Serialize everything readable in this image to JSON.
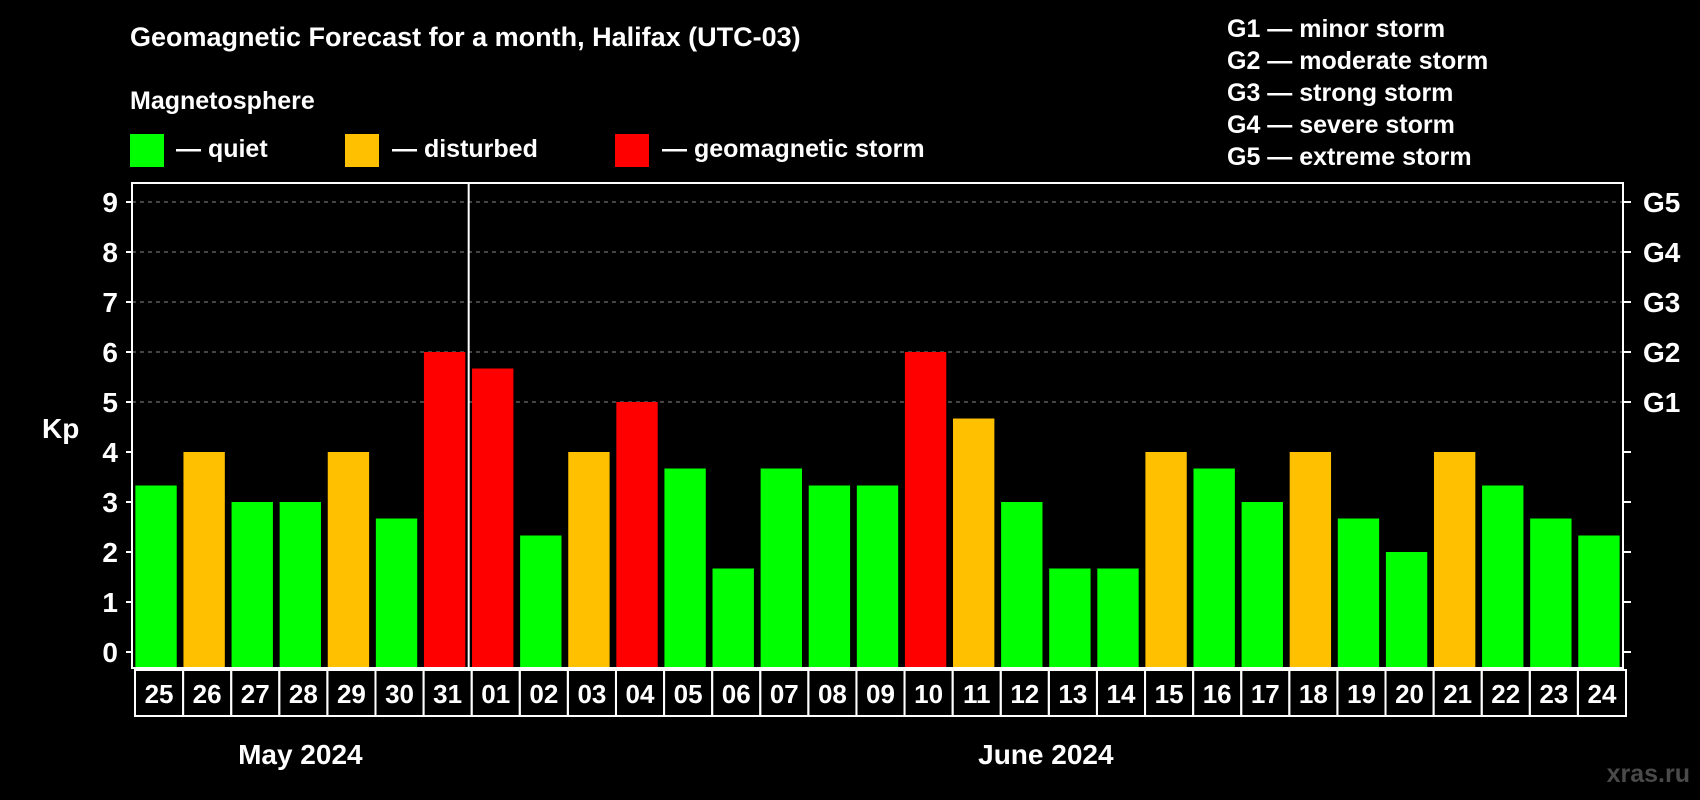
{
  "header": {
    "title": "Geomagnetic Forecast for a month, Halifax (UTC-03)",
    "legend_heading": "Magnetosphere",
    "legend": [
      {
        "label": "— quiet",
        "color": "#00ff00"
      },
      {
        "label": "— disturbed",
        "color": "#ffc000"
      },
      {
        "label": "— geomagnetic storm",
        "color": "#ff0000"
      }
    ],
    "storm_scale": [
      "G1 — minor storm",
      "G2 — moderate storm",
      "G3 — strong storm",
      "G4 — severe storm",
      "G5 — extreme storm"
    ]
  },
  "watermark": "xras.ru",
  "chart_data": {
    "type": "bar",
    "title": "Geomagnetic Forecast for a month, Halifax (UTC-03)",
    "ylabel": "Kp",
    "ylim": [
      0,
      9
    ],
    "yticks": [
      "0",
      "1",
      "2",
      "3",
      "4",
      "5",
      "6",
      "7",
      "8",
      "9"
    ],
    "right_axis_labels": [
      {
        "kp": 5,
        "label": "G1"
      },
      {
        "kp": 6,
        "label": "G2"
      },
      {
        "kp": 7,
        "label": "G3"
      },
      {
        "kp": 8,
        "label": "G4"
      },
      {
        "kp": 9,
        "label": "G5"
      }
    ],
    "grid": "horizontal dashed above Kp 5",
    "months": [
      {
        "label": "May 2024",
        "first_day": "25",
        "last_day": "31"
      },
      {
        "label": "June 2024",
        "first_day": "01",
        "last_day": "24"
      }
    ],
    "categories": [
      "25",
      "26",
      "27",
      "28",
      "29",
      "30",
      "31",
      "01",
      "02",
      "03",
      "04",
      "05",
      "06",
      "07",
      "08",
      "09",
      "10",
      "11",
      "12",
      "13",
      "14",
      "15",
      "16",
      "17",
      "18",
      "19",
      "20",
      "21",
      "22",
      "23",
      "24"
    ],
    "values": [
      3.33,
      4,
      3,
      3,
      4,
      2.67,
      6,
      5.67,
      2.33,
      4,
      5,
      3.67,
      1.67,
      3.67,
      3.33,
      3.33,
      6,
      4.67,
      3,
      1.67,
      1.67,
      4,
      3.67,
      3,
      4,
      2.67,
      2,
      4,
      3.33,
      2.67,
      2.33
    ],
    "colors": {
      "quiet": "#00ff00",
      "disturbed": "#ffc000",
      "storm": "#ff0000"
    }
  }
}
